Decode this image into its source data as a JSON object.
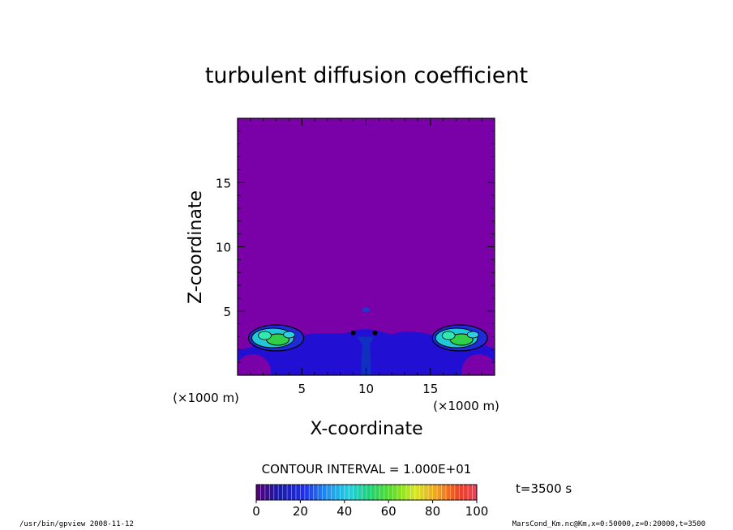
{
  "chart_data": {
    "type": "heatmap",
    "title": "turbulent diffusion coefficient",
    "xlabel": "X-coordinate",
    "ylabel": "Z-coordinate",
    "x_unit": "(×1000 m)",
    "y_unit": "(×1000 m)",
    "xlim": [
      0,
      20
    ],
    "ylim": [
      0,
      20
    ],
    "x_ticks": [
      5,
      10,
      15
    ],
    "y_ticks": [
      5,
      10,
      15
    ],
    "x_tick_labels": [
      "5",
      "10",
      "15"
    ],
    "y_tick_labels": [
      "5",
      "10",
      "15"
    ],
    "contour_interval": "CONTOUR INTERVAL = 1.000E+01",
    "time_label": "t=3500 s",
    "colorbar": {
      "min": 0,
      "max": 100,
      "tick_labels": [
        "0",
        "20",
        "40",
        "60",
        "80",
        "100"
      ],
      "ticks": [
        0,
        20,
        40,
        60,
        80,
        100
      ]
    },
    "background_value": 0,
    "features": [
      {
        "name": "left-plume",
        "x": 3.0,
        "z": 2.9,
        "peak_value": 55
      },
      {
        "name": "right-plume",
        "x": 17.3,
        "z": 2.9,
        "peak_value": 55
      },
      {
        "name": "central-mixing-layer",
        "x": 10.0,
        "z": 2.5,
        "peak_value": 20
      }
    ]
  },
  "footer": {
    "left": "/usr/bin/gpview   2008-11-12",
    "right": "MarsCond_Km.nc@Km,x=0:50000,z=0:20000,t=3500"
  },
  "colors": {
    "background": "#ffffff",
    "field_base": "#7a00a8",
    "low": "#1a10d8",
    "mid": "#20c8d8",
    "high": "#30d048"
  }
}
